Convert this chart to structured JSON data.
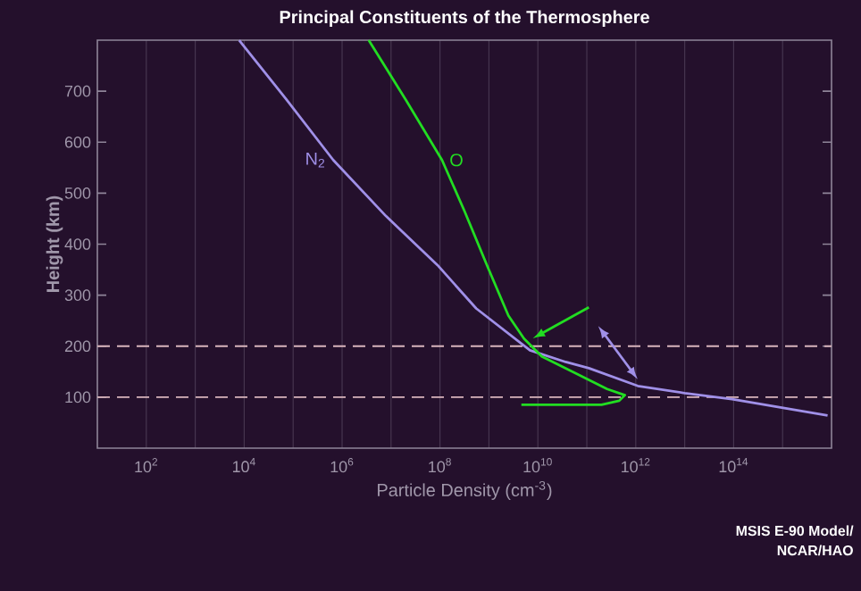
{
  "chart_data": {
    "type": "line",
    "title": "Principal Constituents of the Thermosphere",
    "xlabel": "Particle Density (cm$^{-3}$)",
    "ylabel": "Height (km)",
    "log": "x",
    "grid": "x",
    "legend": false,
    "xlim": [
      10,
      1e+16
    ],
    "ylim": [
      0,
      800
    ],
    "xticks": [
      {
        "value": 100,
        "label": "10$^{2}$"
      },
      {
        "value": 1000,
        "label": null
      },
      {
        "value": 10000.0,
        "label": "10$^{4}$"
      },
      {
        "value": 100000.0,
        "label": null
      },
      {
        "value": 1000000.0,
        "label": "10$^{6}$"
      },
      {
        "value": 10000000.0,
        "label": null
      },
      {
        "value": 100000000.0,
        "label": "10$^{8}$"
      },
      {
        "value": 1000000000.0,
        "label": null
      },
      {
        "value": 10000000000.0,
        "label": "10$^{10}$"
      },
      {
        "value": 100000000000.0,
        "label": null
      },
      {
        "value": 1000000000000.0,
        "label": "10$^{12}$"
      },
      {
        "value": 10000000000000.0,
        "label": null
      },
      {
        "value": 100000000000000.0,
        "label": "10$^{14}$"
      },
      {
        "value": 1000000000000000.0,
        "label": null
      }
    ],
    "yticks": [
      100,
      200,
      300,
      400,
      500,
      600,
      700
    ],
    "series": [
      {
        "name": "N$_{2}$",
        "color": "#a090e8",
        "x": [
          7900.0,
          71000.0,
          660000.0,
          7900000.0,
          89000000.0,
          550000000.0,
          6900000000.0,
          37000000000.0,
          110000000000.0,
          1100000000000.0,
          10000000000000.0,
          93000000000000.0,
          8300000000000000.0
        ],
        "values": [
          800,
          685,
          565,
          455,
          359,
          274,
          192,
          169,
          157,
          122,
          108,
          96,
          64
        ]
      },
      {
        "name": "O",
        "color": "#22dd22",
        "x": [
          3500000.0,
          20000000.0,
          110000000.0,
          320000000.0,
          910000000.0,
          2500000000.0,
          5200000000.0,
          12000000000.0,
          65000000000.0,
          260000000000.0,
          600000000000.0,
          460000000000.0,
          200000000000.0,
          4600000000.0
        ],
        "values": [
          800,
          683,
          565,
          464,
          359,
          260,
          215,
          180,
          145,
          116,
          104,
          93,
          85,
          85
        ]
      }
    ],
    "ref_lines": [
      {
        "axis": "y",
        "value": 100,
        "color": "#d8b4bc",
        "line_style": "dashed"
      },
      {
        "axis": "y",
        "value": 200,
        "color": "#d8b4bc",
        "line_style": "dashed"
      }
    ],
    "annotations": [
      "MSIS E-90 Model/",
      "NCAR/HAO"
    ]
  }
}
